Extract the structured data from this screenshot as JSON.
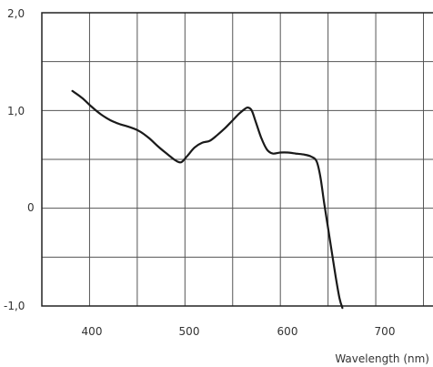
{
  "chart_data": {
    "type": "line",
    "title": "",
    "xlabel": "Wavelength (nm)",
    "ylabel": "",
    "xlim": [
      350,
      760
    ],
    "ylim": [
      -1.0,
      2.0
    ],
    "grid": true,
    "x_ticks": [
      400,
      500,
      600,
      700
    ],
    "x_tick_labels": [
      "400",
      "500",
      "600",
      "700"
    ],
    "y_ticks": [
      -1.0,
      0,
      1.0,
      2.0
    ],
    "y_tick_labels": [
      "-1,0",
      "0",
      "1,0",
      "2,0"
    ],
    "x_grid_lines": [
      400,
      450,
      500,
      550,
      600,
      650,
      700,
      750
    ],
    "y_grid_lines": [
      -0.5,
      0,
      0.5,
      1.0,
      1.5
    ],
    "line_color": "#1a1a1a",
    "grid_color": "#555555",
    "series": [
      {
        "x": [
          382,
          392,
          402,
          412,
          422,
          432,
          442,
          452,
          462,
          472,
          482,
          490,
          496,
          502,
          510,
          518,
          526,
          534,
          542,
          550,
          556,
          562,
          566,
          570,
          574,
          580,
          586,
          592,
          600,
          608,
          616,
          624,
          632,
          638,
          642,
          646,
          650,
          654,
          658,
          662,
          665
        ],
        "y": [
          1.2,
          1.13,
          1.04,
          0.96,
          0.9,
          0.86,
          0.83,
          0.79,
          0.72,
          0.63,
          0.55,
          0.49,
          0.47,
          0.53,
          0.62,
          0.67,
          0.69,
          0.75,
          0.82,
          0.9,
          0.96,
          1.01,
          1.03,
          1.0,
          0.89,
          0.72,
          0.6,
          0.56,
          0.57,
          0.57,
          0.56,
          0.55,
          0.53,
          0.48,
          0.32,
          0.05,
          -0.2,
          -0.45,
          -0.7,
          -0.92,
          -1.02
        ]
      }
    ]
  }
}
